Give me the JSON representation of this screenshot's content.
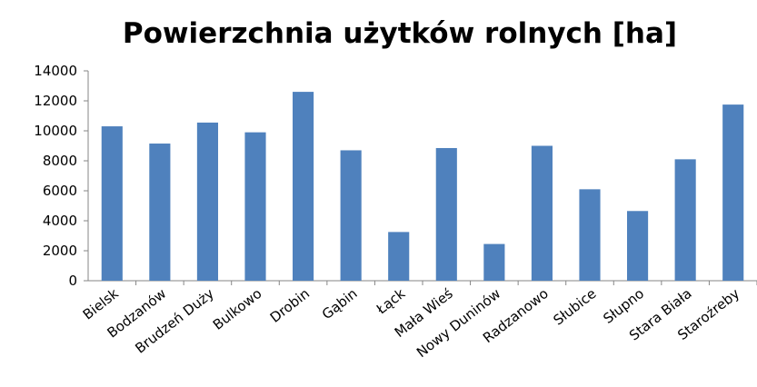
{
  "chart_data": {
    "type": "bar",
    "title": "Powierzchnia użytków rolnych [ha]",
    "categories": [
      "Bielsk",
      "Bodzanów",
      "Brudzeń Duży",
      "Bulkowo",
      "Drobin",
      "Gąbin",
      "Łąck",
      "Mała Wieś",
      "Nowy Duninów",
      "Radzanowo",
      "Słubice",
      "Słupno",
      "Stara Biała",
      "Staroźreby"
    ],
    "values": [
      10300,
      9150,
      10550,
      9900,
      12600,
      8700,
      3250,
      8850,
      2450,
      9000,
      6100,
      4650,
      8100,
      11750
    ],
    "color": "#4f81bd",
    "ylim": [
      0,
      14000
    ],
    "yticks": [
      0,
      2000,
      4000,
      6000,
      8000,
      10000,
      12000,
      14000
    ],
    "grid": false
  }
}
